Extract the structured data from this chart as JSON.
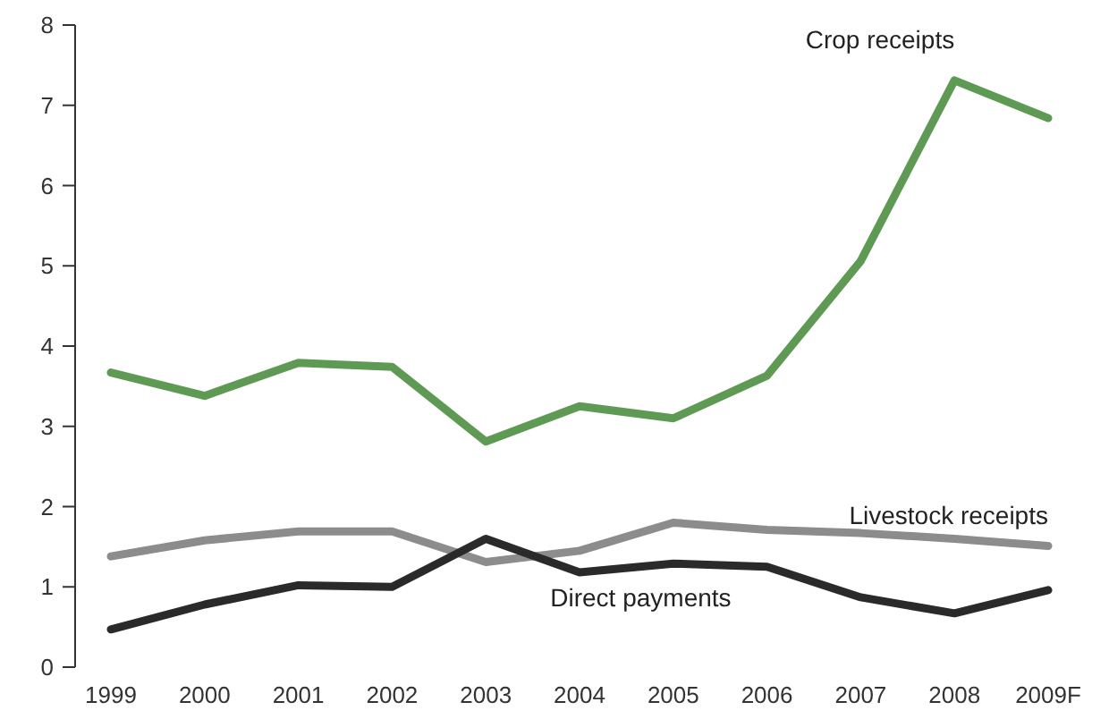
{
  "chart_data": {
    "type": "line",
    "categories": [
      "1999",
      "2000",
      "2001",
      "2002",
      "2003",
      "2004",
      "2005",
      "2006",
      "2007",
      "2008",
      "2009F"
    ],
    "ylim": [
      0,
      8
    ],
    "yticks": [
      0,
      1,
      2,
      3,
      4,
      5,
      6,
      7,
      8
    ],
    "grid": false,
    "series": [
      {
        "name": "Crop receipts",
        "color": "#5f9a55",
        "values": [
          3.67,
          3.38,
          3.79,
          3.74,
          2.81,
          3.25,
          3.1,
          3.63,
          5.06,
          7.31,
          6.84
        ]
      },
      {
        "name": "Livestock receipts",
        "color": "#8c8c8c",
        "values": [
          1.38,
          1.58,
          1.69,
          1.69,
          1.31,
          1.45,
          1.8,
          1.71,
          1.67,
          1.6,
          1.51
        ]
      },
      {
        "name": "Direct payments",
        "color": "#2a2a2a",
        "values": [
          0.47,
          0.78,
          1.02,
          1.0,
          1.6,
          1.18,
          1.29,
          1.25,
          0.87,
          0.67,
          0.96
        ]
      }
    ]
  }
}
